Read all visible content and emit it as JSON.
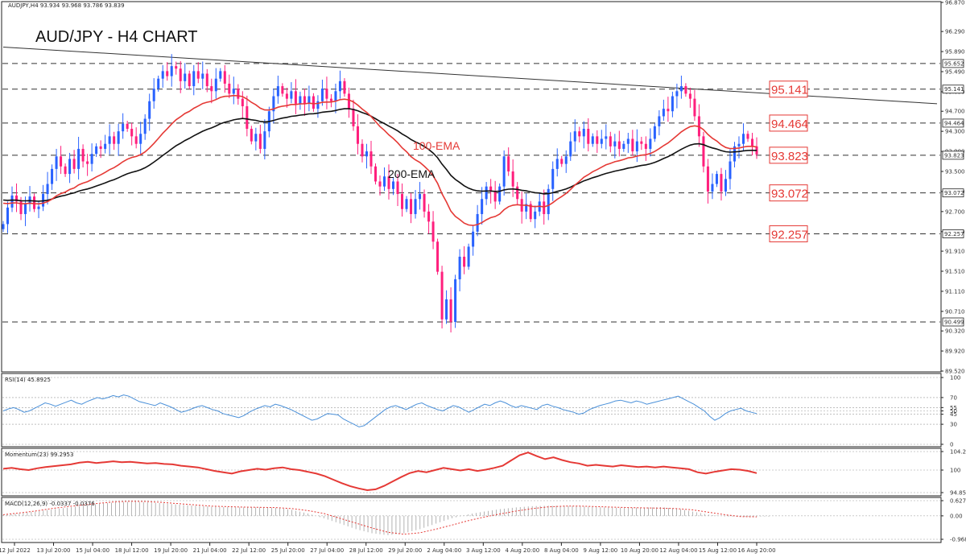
{
  "chart_data": {
    "type": "candlestick",
    "title": "AUD/JPY - H4 CHART",
    "header_text": "AUDJPY,H4 93.934 93.968 93.786 93.839",
    "colors": {
      "bull": "#2962ff",
      "bear": "#ff1f7d",
      "ema100": "#e53935",
      "ema200": "#111111",
      "rsi": "#4a90d9",
      "momentum": "#e53935",
      "macd": "#e53935",
      "level": "#e53935",
      "grid": "#999999"
    },
    "price_axis": {
      "range": [
        89.52,
        96.87
      ],
      "ticks": [
        "96.870",
        "96.290",
        "95.890",
        "95.490",
        "95.090",
        "94.700",
        "94.300",
        "93.900",
        "93.500",
        "93.100",
        "92.700",
        "92.300",
        "91.910",
        "91.510",
        "91.110",
        "90.710",
        "90.320",
        "89.920",
        "89.520"
      ]
    },
    "time_axis": {
      "labels": [
        "12 Jul 2022",
        "13 Jul 20:00",
        "15 Jul 04:00",
        "18 Jul 12:00",
        "19 Jul 20:00",
        "21 Jul 04:00",
        "22 Jul 12:00",
        "25 Jul 20:00",
        "27 Jul 04:00",
        "28 Jul 12:00",
        "29 Jul 20:00",
        "2 Aug 04:00",
        "3 Aug 12:00",
        "4 Aug 20:00",
        "8 Aug 04:00",
        "9 Aug 12:00",
        "10 Aug 20:00",
        "12 Aug 04:00",
        "15 Aug 12:00",
        "16 Aug 20:00"
      ]
    },
    "horizontal_levels": [
      {
        "value": 95.652,
        "axis_label": "95.652"
      },
      {
        "value": 95.141,
        "axis_label": "95.141",
        "label": "95.141"
      },
      {
        "value": 94.464,
        "axis_label": "94.464",
        "label": "94.464"
      },
      {
        "value": 93.823,
        "axis_label": "93.823",
        "label": "93.823"
      },
      {
        "value": 93.072,
        "axis_label": "93.072",
        "label": "93.072"
      },
      {
        "value": 92.257,
        "axis_label": "92.257",
        "label": "92.257"
      },
      {
        "value": 90.499,
        "axis_label": "90.499"
      }
    ],
    "trendline": {
      "from": {
        "t": 0,
        "price": 95.98
      },
      "to": {
        "t": 232,
        "price": 94.85
      }
    },
    "ema_labels": {
      "ema100": "100-EMA",
      "ema200": "200-EMA"
    },
    "series_close": [
      92.45,
      92.78,
      93.02,
      92.9,
      92.65,
      92.85,
      93.0,
      92.75,
      92.8,
      93.05,
      93.25,
      93.55,
      93.8,
      93.6,
      93.45,
      93.75,
      93.55,
      93.95,
      93.7,
      93.65,
      93.85,
      94.0,
      93.95,
      94.05,
      94.2,
      94.05,
      94.3,
      94.45,
      94.35,
      94.2,
      94.05,
      94.25,
      94.55,
      94.9,
      95.15,
      95.35,
      95.5,
      95.4,
      95.6,
      95.55,
      95.3,
      95.45,
      95.2,
      95.5,
      95.35,
      95.45,
      95.2,
      95.1,
      95.35,
      95.5,
      95.25,
      95.05,
      95.15,
      94.95,
      94.8,
      94.35,
      94.1,
      94.25,
      93.95,
      94.3,
      94.7,
      95.0,
      95.2,
      95.05,
      94.95,
      95.1,
      94.85,
      95.0,
      94.85,
      95.0,
      94.75,
      94.9,
      95.15,
      94.95,
      94.9,
      95.1,
      95.3,
      95.05,
      94.75,
      94.4,
      94.05,
      93.8,
      93.9,
      93.6,
      93.3,
      93.2,
      93.4,
      93.15,
      93.3,
      93.05,
      92.75,
      92.95,
      92.65,
      92.95,
      93.05,
      92.7,
      92.5,
      92.1,
      91.5,
      90.55,
      90.95,
      90.5,
      91.35,
      91.8,
      91.6,
      92.0,
      92.3,
      92.65,
      92.95,
      93.2,
      93.1,
      92.9,
      93.2,
      93.8,
      93.5,
      93.2,
      92.95,
      92.7,
      92.85,
      92.55,
      92.7,
      92.9,
      92.65,
      93.15,
      93.55,
      93.75,
      93.65,
      93.8,
      94.1,
      94.3,
      94.2,
      94.35,
      94.05,
      94.2,
      94.05,
      94.15,
      94.2,
      94.0,
      94.1,
      93.95,
      94.05,
      94.15,
      93.9,
      94.1,
      94.05,
      93.95,
      94.15,
      94.4,
      94.6,
      94.75,
      94.7,
      95.0,
      95.1,
      95.2,
      95.05,
      94.95,
      94.6,
      94.2,
      93.6,
      93.1,
      93.25,
      93.45,
      93.1,
      93.35,
      93.7,
      94.0,
      94.05,
      94.25,
      94.15,
      94.0,
      93.84
    ],
    "rsi": {
      "label": "RSI(14) 45.8925",
      "range": [
        0,
        100
      ],
      "ticks": [
        "100",
        "70",
        "55",
        "50",
        "45",
        "30",
        "0"
      ],
      "values": [
        50,
        53,
        55,
        52,
        48,
        50,
        54,
        58,
        62,
        60,
        57,
        60,
        63,
        66,
        62,
        60,
        64,
        67,
        70,
        68,
        70,
        73,
        71,
        74,
        72,
        68,
        64,
        62,
        60,
        58,
        62,
        59,
        56,
        52,
        48,
        50,
        53,
        56,
        58,
        55,
        52,
        50,
        46,
        44,
        42,
        40,
        43,
        48,
        52,
        55,
        58,
        56,
        60,
        58,
        55,
        52,
        48,
        44,
        40,
        36,
        38,
        42,
        46,
        45,
        44,
        38,
        34,
        30,
        26,
        28,
        34,
        40,
        46,
        52,
        56,
        58,
        55,
        52,
        56,
        60,
        62,
        58,
        55,
        52,
        50,
        54,
        58,
        56,
        52,
        48,
        52,
        56,
        60,
        58,
        62,
        65,
        62,
        58,
        55,
        58,
        56,
        54,
        52,
        58,
        60,
        57,
        55,
        52,
        50,
        48,
        45,
        47,
        52,
        55,
        58,
        60,
        62,
        65,
        66,
        64,
        62,
        65,
        63,
        60,
        62,
        64,
        66,
        68,
        70,
        72,
        68,
        64,
        60,
        55,
        50,
        42,
        36,
        40,
        46,
        50,
        52,
        54,
        50,
        48,
        46
      ]
    },
    "momentum": {
      "label": "Momentum(23) 99.2953",
      "range": [
        94.8513,
        104.2292
      ],
      "ticks": [
        "104.2292",
        "100",
        "94.8513"
      ],
      "values": [
        100.3,
        100.5,
        100.2,
        100.0,
        100.4,
        100.7,
        100.9,
        101.1,
        101.3,
        101.7,
        101.9,
        101.6,
        101.8,
        102.0,
        101.8,
        101.9,
        101.7,
        101.5,
        101.6,
        101.4,
        101.3,
        101.0,
        100.8,
        100.6,
        100.2,
        99.8,
        99.5,
        99.2,
        99.7,
        100.0,
        100.3,
        100.1,
        100.4,
        100.6,
        100.2,
        100.0,
        99.6,
        99.2,
        98.6,
        97.8,
        97.0,
        96.3,
        95.8,
        95.4,
        95.6,
        96.4,
        97.4,
        98.4,
        99.3,
        99.8,
        99.5,
        100.0,
        100.5,
        100.2,
        99.9,
        100.2,
        99.8,
        100.1,
        100.5,
        101.0,
        102.2,
        103.4,
        104.0,
        103.2,
        102.5,
        102.9,
        102.3,
        101.8,
        101.5,
        101.0,
        101.2,
        101.0,
        100.8,
        101.1,
        100.9,
        100.7,
        100.8,
        100.6,
        100.8,
        100.6,
        100.4,
        100.2,
        99.5,
        99.2,
        99.6,
        99.9,
        100.2,
        100.1,
        99.8,
        99.3
      ]
    },
    "macd": {
      "label": "MACD(12,26,9) -0.0337 -0.0376",
      "range": [
        -0.9684,
        0.6276
      ],
      "ticks": [
        "0.6276",
        "0.00",
        "-0.9684"
      ],
      "signal": [
        0.05,
        0.12,
        0.2,
        0.3,
        0.38,
        0.45,
        0.52,
        0.58,
        0.6,
        0.59,
        0.55,
        0.5,
        0.45,
        0.4,
        0.38,
        0.36,
        0.35,
        0.34,
        0.3,
        0.22,
        0.1,
        -0.1,
        -0.3,
        -0.5,
        -0.68,
        -0.76,
        -0.7,
        -0.55,
        -0.38,
        -0.2,
        -0.05,
        0.08,
        0.2,
        0.3,
        0.37,
        0.4,
        0.4,
        0.38,
        0.36,
        0.34,
        0.33,
        0.32,
        0.3,
        0.25,
        0.15,
        0.05,
        -0.03,
        -0.04
      ],
      "hist": [
        0.05,
        0.1,
        0.18,
        0.26,
        0.34,
        0.42,
        0.5,
        0.56,
        0.58,
        0.56,
        0.52,
        0.46,
        0.42,
        0.38,
        0.36,
        0.35,
        0.35,
        0.33,
        0.25,
        0.1,
        -0.1,
        -0.32,
        -0.55,
        -0.72,
        -0.8,
        -0.72,
        -0.55,
        -0.32,
        -0.1,
        0.06,
        0.18,
        0.28,
        0.35,
        0.4,
        0.42,
        0.41,
        0.39,
        0.36,
        0.34,
        0.33,
        0.34,
        0.36,
        0.3,
        0.18,
        0.05,
        -0.02,
        -0.04,
        -0.03
      ]
    }
  }
}
